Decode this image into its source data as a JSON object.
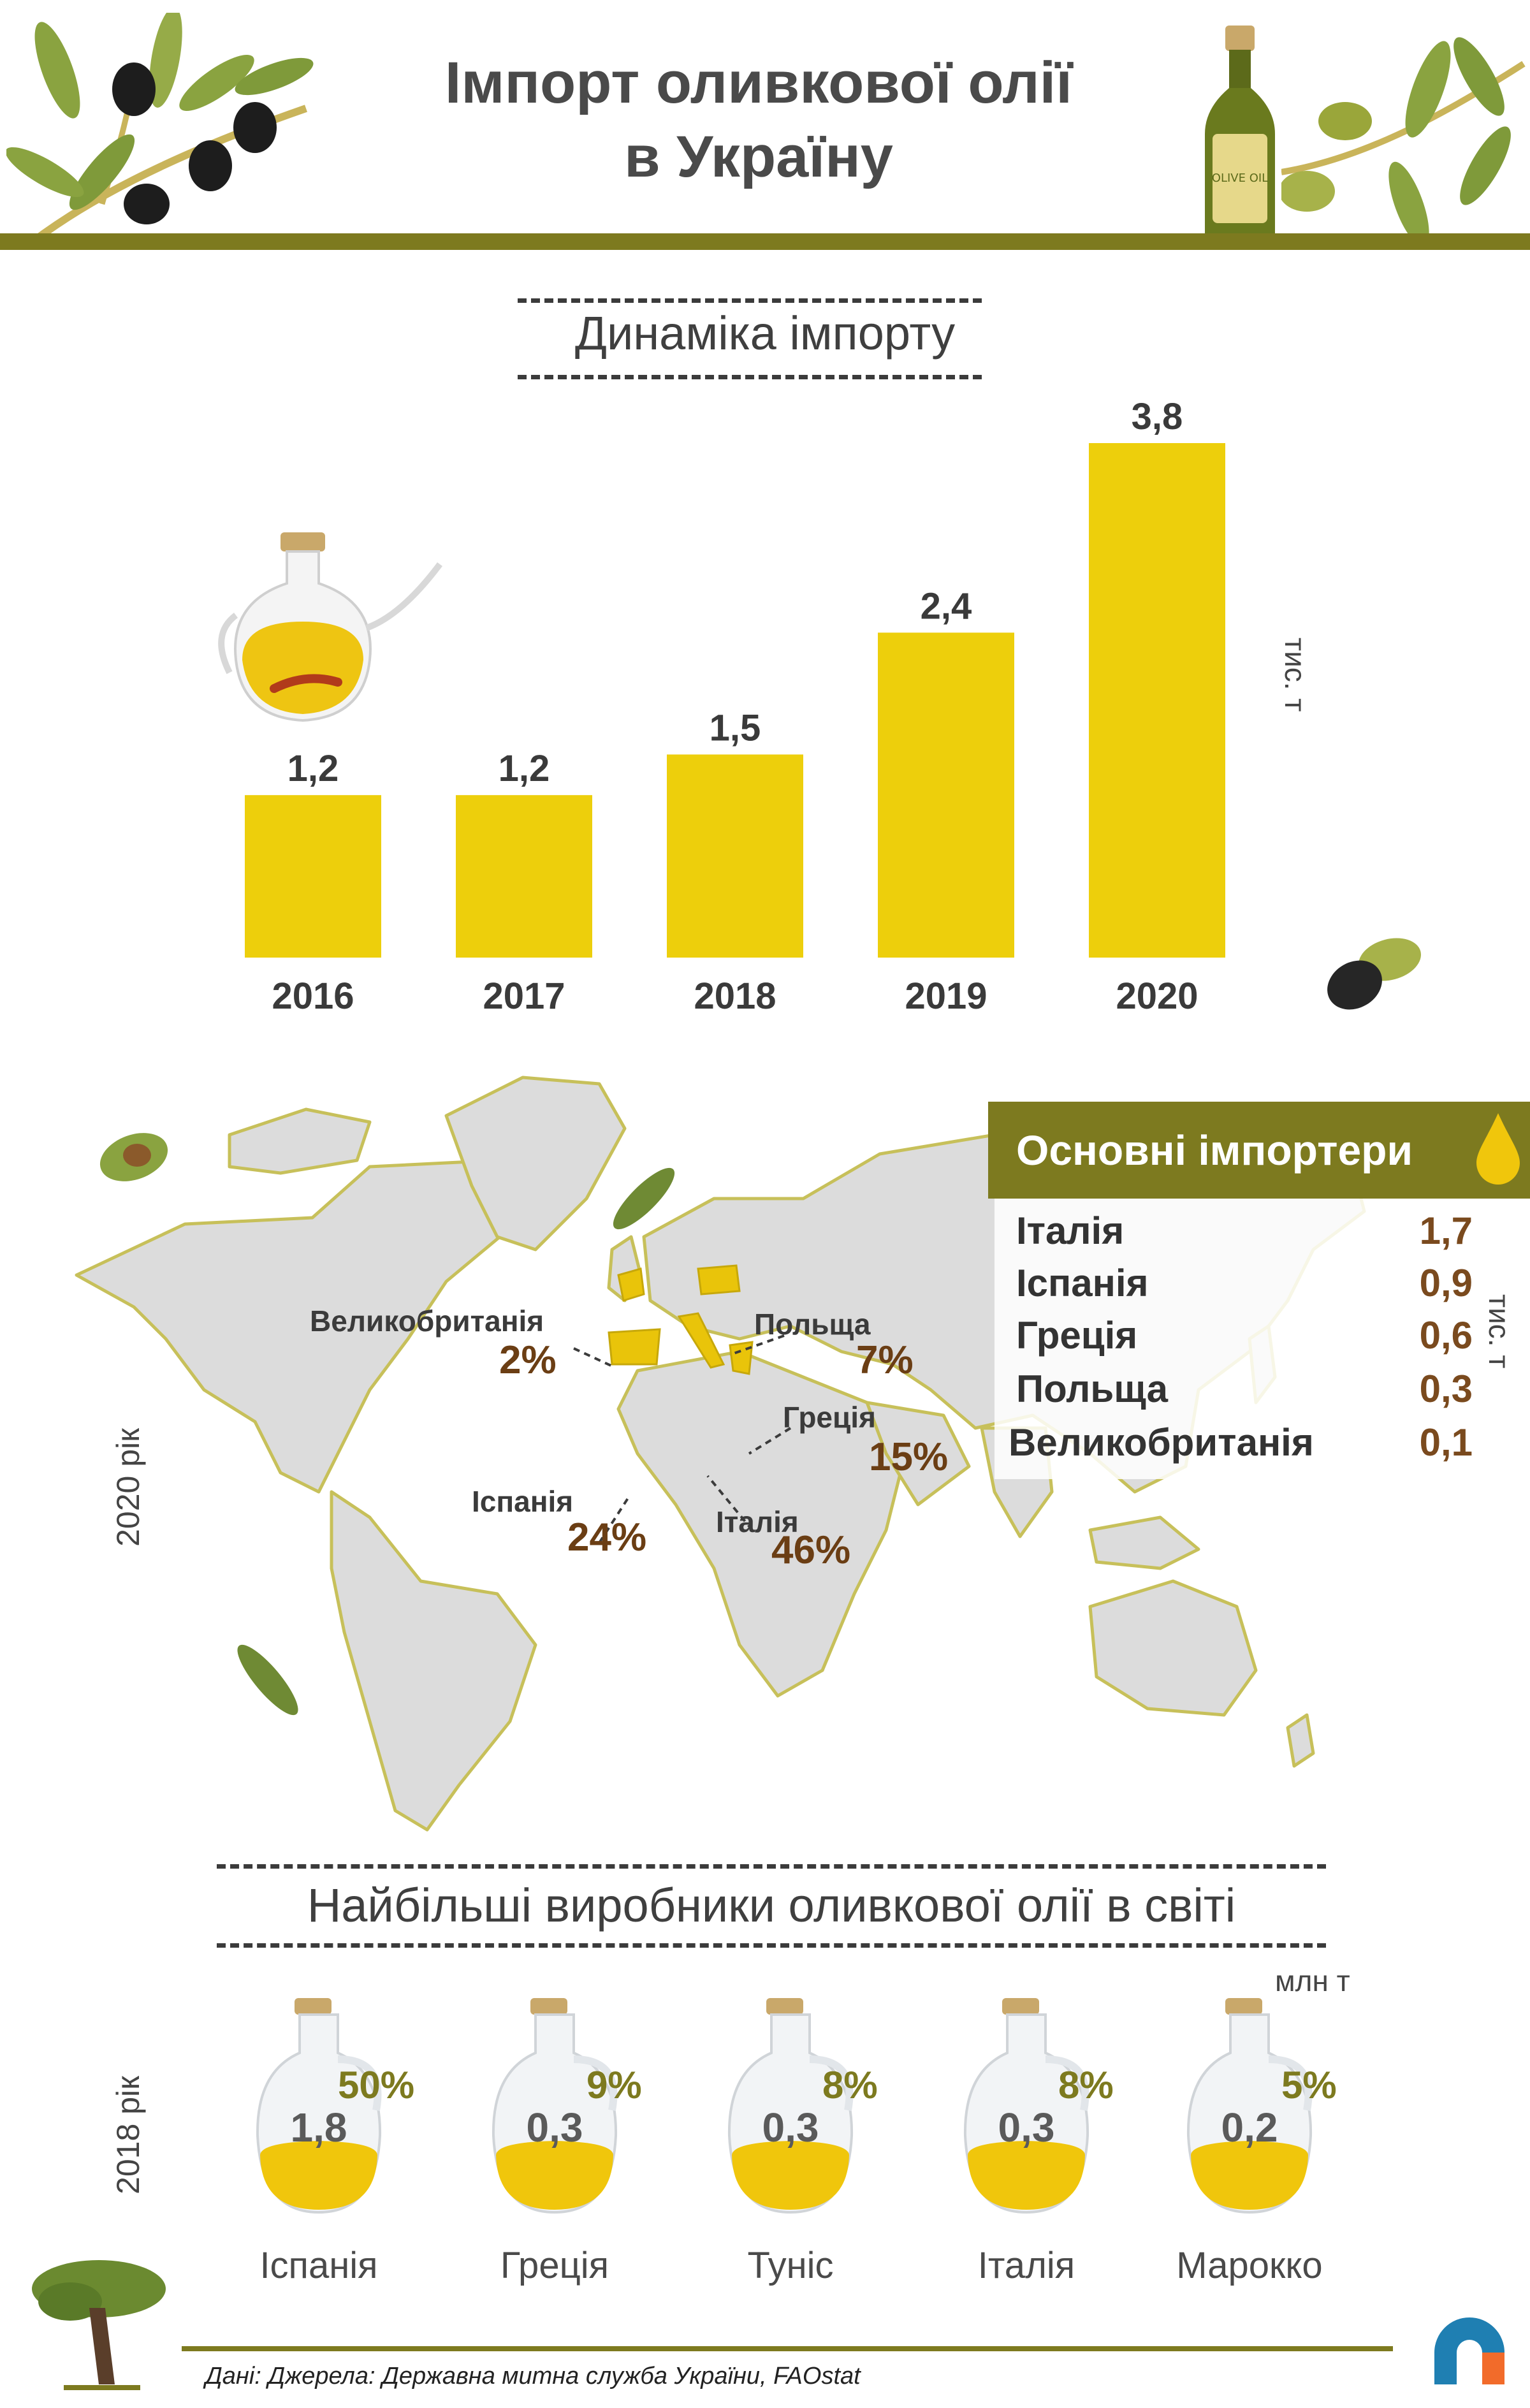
{
  "header": {
    "title_line1": "Імпорт оливкової олії",
    "title_line2": "в Україну",
    "bottle_label": "OLIVE OIL"
  },
  "colors": {
    "olive": "#7d7a1f",
    "bar": "#edcf0c",
    "map_land": "#dcdcdc",
    "highlight": "#e9c40a",
    "pct_brown": "#6b3e14"
  },
  "dynamics": {
    "title": "Динаміка імпорту",
    "unit": "тис. т"
  },
  "chart_data": {
    "type": "bar",
    "categories": [
      "2016",
      "2017",
      "2018",
      "2019",
      "2020"
    ],
    "values": [
      1.2,
      1.2,
      1.5,
      2.4,
      3.8
    ],
    "labels": [
      "1,2",
      "1,2",
      "1,5",
      "2,4",
      "3,8"
    ],
    "title": "Динаміка імпорту",
    "ylabel": "тис. т",
    "xlabel": ""
  },
  "map": {
    "year_label": "2020 рік",
    "countries": [
      {
        "name": "Великобританія",
        "pct": "2%"
      },
      {
        "name": "Польща",
        "pct": "7%"
      },
      {
        "name": "Греція",
        "pct": "15%"
      },
      {
        "name": "Іспанія",
        "pct": "24%"
      },
      {
        "name": "Італія",
        "pct": "46%"
      }
    ]
  },
  "importers": {
    "title": "Основні імпортери",
    "unit": "тис. т",
    "rows": [
      {
        "name": "Італія",
        "value": "1,7"
      },
      {
        "name": "Іспанія",
        "value": "0,9"
      },
      {
        "name": "Греція",
        "value": "0,6"
      },
      {
        "name": "Польща",
        "value": "0,3"
      },
      {
        "name": "Великобританія",
        "value": "0,1"
      }
    ]
  },
  "producers": {
    "title": "Найбільші виробники оливкової олії в світі",
    "unit": "млн т",
    "year_label": "2018 рік",
    "items": [
      {
        "name": "Іспанія",
        "value": "1,8",
        "pct": "50%"
      },
      {
        "name": "Греція",
        "value": "0,3",
        "pct": "9%"
      },
      {
        "name": "Туніс",
        "value": "0,3",
        "pct": "8%"
      },
      {
        "name": "Італія",
        "value": "0,3",
        "pct": "8%"
      },
      {
        "name": "Марокко",
        "value": "0,2",
        "pct": "5%"
      }
    ]
  },
  "footer": {
    "source": "Дані: Джерела: Державна митна служба України, FAOstat"
  }
}
